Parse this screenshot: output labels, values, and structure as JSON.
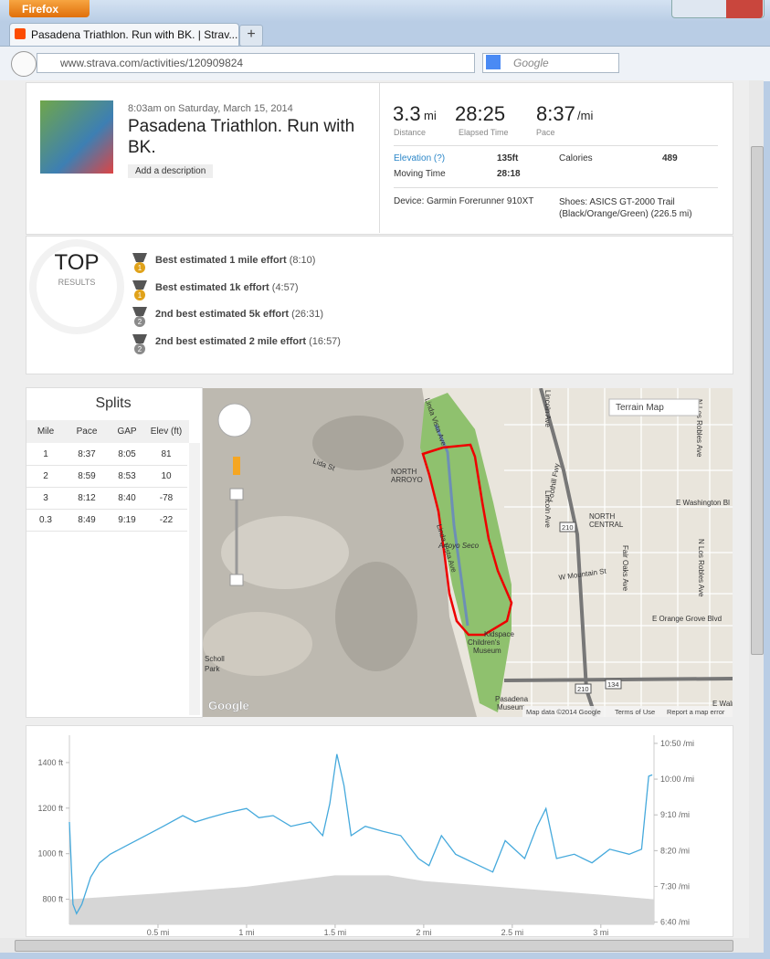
{
  "browser": {
    "app_button": "Firefox",
    "tab_title": "Pasadena Triathlon. Run with BK. | Strav...",
    "url": "www.strava.com/activities/120909824",
    "search_engine": "Google"
  },
  "activity": {
    "date": "8:03am on Saturday, March 15, 2014",
    "title": "Pasadena Triathlon. Run with BK.",
    "add_description": "Add a description",
    "stats": [
      {
        "value": "3.3",
        "unit": "mi",
        "label": "Distance"
      },
      {
        "value": "28:25",
        "label": "Elapsed Time"
      },
      {
        "value": "8:37",
        "unit": "/mi",
        "label": "Pace"
      }
    ],
    "details": {
      "elevation_label": "Elevation (?)",
      "elevation": "135ft",
      "calories_label": "Calories",
      "calories": 489,
      "moving_time_label": "Moving Time",
      "moving_time": "28:18"
    },
    "device": "Device: Garmin Forerunner 910XT",
    "shoes": "Shoes: ASICS GT-2000 Trail (Black/Orange/Green) (226.5 mi)"
  },
  "top_results": {
    "title": "TOP",
    "subtitle": "RESULTS",
    "items": [
      {
        "rank": 1,
        "name": "Best estimated 1 mile effort",
        "time": "(8:10)"
      },
      {
        "rank": 1,
        "name": "Best estimated 1k effort",
        "time": "(4:57)"
      },
      {
        "rank": 2,
        "name": "2nd best estimated 5k effort",
        "time": "(26:31)"
      },
      {
        "rank": 2,
        "name": "2nd best estimated 2 mile effort",
        "time": "(16:57)"
      }
    ]
  },
  "splits": {
    "title": "Splits",
    "columns": [
      "Mile",
      "Pace",
      "GAP",
      "Elev (ft)"
    ],
    "rows": [
      [
        1,
        "8:37",
        "8:05",
        81
      ],
      [
        2,
        "8:59",
        "8:53",
        10
      ],
      [
        3,
        "8:12",
        "8:40",
        -78
      ],
      [
        0.3,
        "8:49",
        "9:19",
        -22
      ]
    ]
  },
  "map": {
    "type_button": "Terrain Map",
    "labels": [
      "Linda Vista Ave",
      "Lida St",
      "NORTH",
      "ARROYO",
      "Linda Vista Ave",
      "Arroyo Seco",
      "Lincoln Ave",
      "Foothill Fwy",
      "Lincoln Ave",
      "E Washington Bl",
      "NORTH",
      "CENTRAL",
      "W Mountain St",
      "Fair Oaks Ave",
      "N Los Robles Ave",
      "N Los Robles Ave",
      "E Orange Grove Blvd",
      "Kidspace",
      "Children's",
      "Museum",
      "Scholl",
      "Park",
      "Pasadena",
      "Museum",
      "E Walnut St",
      "210",
      "210",
      "134"
    ],
    "attribution": "Map data ©2014 Google",
    "terms": "Terms of Use",
    "report": "Report a map error",
    "logo": "Google"
  },
  "chart_data": {
    "type": "line",
    "xlim": [
      0,
      3.3
    ],
    "xticks": [
      {
        "value": 0.5,
        "label": "0.5 mi"
      },
      {
        "value": 1,
        "label": "1 mi"
      },
      {
        "value": 1.5,
        "label": "1.5 mi"
      },
      {
        "value": 2,
        "label": "2 mi"
      },
      {
        "value": 2.5,
        "label": "2.5 mi"
      },
      {
        "value": 3,
        "label": "3 mi"
      }
    ],
    "ylim": [
      690,
      1500
    ],
    "yticks": [
      {
        "value": 800,
        "label": "800 ft"
      },
      {
        "value": 1000,
        "label": "1000 ft"
      },
      {
        "value": 1200,
        "label": "1200 ft"
      },
      {
        "value": 1400,
        "label": "1400 ft"
      }
    ],
    "y2lim": [
      397,
      655
    ],
    "y2ticks": [
      {
        "value": 400,
        "label": "6:40 /mi"
      },
      {
        "value": 450,
        "label": "7:30 /mi"
      },
      {
        "value": 500,
        "label": "8:20 /mi"
      },
      {
        "value": 550,
        "label": "9:10 /mi"
      },
      {
        "value": 600,
        "label": "10:00 /mi"
      },
      {
        "value": 650,
        "label": "10:50 /mi"
      }
    ],
    "series": [
      {
        "type": "area",
        "color": "#d6d6d6",
        "x": [
          0,
          0.5,
          1,
          1.5,
          1.8,
          2,
          2.5,
          3,
          3.3
        ],
        "values": [
          800,
          825,
          855,
          905,
          905,
          880,
          850,
          820,
          800
        ]
      },
      {
        "type": "line",
        "axis": "y2",
        "color": "#45a9dc",
        "x": [
          0,
          0.02,
          0.04,
          0.07,
          0.12,
          0.17,
          0.23,
          0.33,
          0.43,
          0.53,
          0.64,
          0.71,
          0.79,
          0.89,
          1.0,
          1.07,
          1.15,
          1.25,
          1.36,
          1.43,
          1.47,
          1.51,
          1.55,
          1.59,
          1.67,
          1.77,
          1.87,
          1.97,
          2.03,
          2.1,
          2.18,
          2.28,
          2.39,
          2.46,
          2.57,
          2.64,
          2.69,
          2.75,
          2.85,
          2.95,
          3.05,
          3.16,
          3.23,
          3.27,
          3.29
        ],
        "values": [
          540,
          425,
          412,
          425,
          463,
          483,
          495,
          508,
          521,
          534,
          549,
          540,
          546,
          553,
          559,
          546,
          549,
          534,
          540,
          521,
          566,
          635,
          591,
          521,
          534,
          527,
          521,
          489,
          479,
          521,
          495,
          483,
          470,
          514,
          489,
          534,
          559,
          489,
          495,
          483,
          502,
          495,
          502,
          604,
          606
        ]
      }
    ]
  }
}
